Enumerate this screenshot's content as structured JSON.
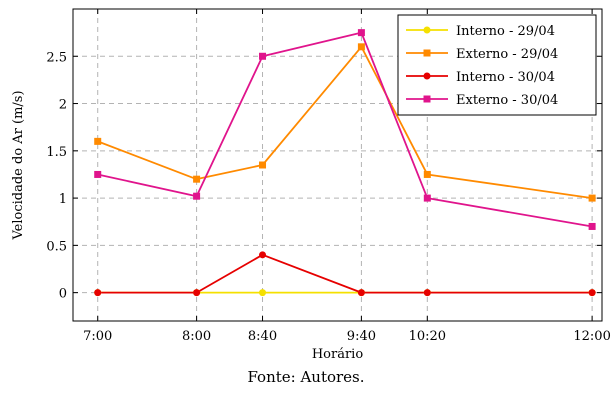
{
  "chart_data": {
    "type": "line",
    "title": "",
    "xlabel": "Horário",
    "ylabel": "Velocidade do Ar (m/s)",
    "x": [
      7.0,
      8.0,
      8.6667,
      9.6667,
      10.3333,
      12.0
    ],
    "x_tick_values": [
      7.0,
      8.0,
      8.6667,
      9.6667,
      10.3333,
      12.0
    ],
    "x_tick_labels": [
      "7:00",
      "8:00",
      "8:40",
      "9:40",
      "10:20",
      "12:00"
    ],
    "xlim": [
      6.75,
      12.1
    ],
    "ylim": [
      -0.3,
      3.0
    ],
    "y_ticks": [
      0,
      0.5,
      1,
      1.5,
      2,
      2.5
    ],
    "y_tick_labels": [
      "0",
      "0.5",
      "1",
      "1.5",
      "2",
      "2.5"
    ],
    "grid": true,
    "legend_position": "top-right",
    "series": [
      {
        "name": "Interno - 29/04",
        "color": "#f5e000",
        "marker": "circle",
        "values": [
          0,
          0,
          0,
          0,
          0,
          0
        ]
      },
      {
        "name": "Externo - 29/04",
        "color": "#ff8a00",
        "marker": "square",
        "values": [
          1.6,
          1.2,
          1.35,
          2.6,
          1.25,
          1.0
        ]
      },
      {
        "name": "Interno - 30/04",
        "color": "#e60000",
        "marker": "circle",
        "values": [
          0,
          0,
          0.4,
          0,
          0,
          0
        ]
      },
      {
        "name": "Externo - 30/04",
        "color": "#e0148c",
        "marker": "square",
        "values": [
          1.25,
          1.02,
          2.5,
          2.75,
          1.0,
          0.7
        ]
      }
    ]
  },
  "caption": "Fonte: Autores."
}
